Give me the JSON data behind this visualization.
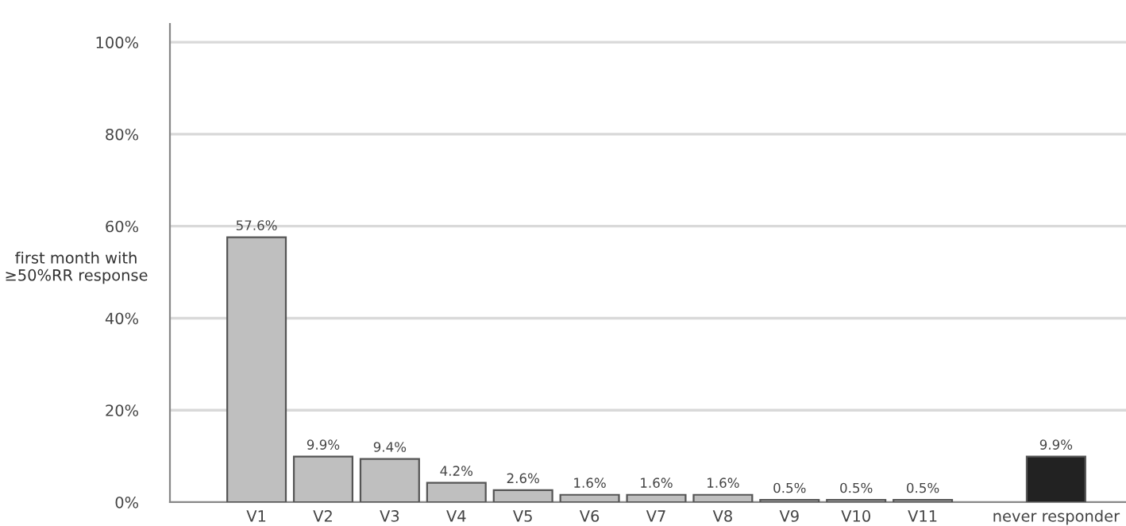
{
  "chart_data": {
    "type": "bar",
    "ylabel": "first month with\n≥50%RR response",
    "categories": [
      "V1",
      "V2",
      "V3",
      "V4",
      "V5",
      "V6",
      "V7",
      "V8",
      "V9",
      "V10",
      "V11",
      null,
      "never responder"
    ],
    "values": [
      57.6,
      9.9,
      9.4,
      4.2,
      2.6,
      1.6,
      1.6,
      1.6,
      0.5,
      0.5,
      0.5,
      null,
      9.9
    ],
    "colors": [
      "#bfbfbf",
      "#bfbfbf",
      "#bfbfbf",
      "#bfbfbf",
      "#bfbfbf",
      "#bfbfbf",
      "#bfbfbf",
      "#bfbfbf",
      "#bfbfbf",
      "#bfbfbf",
      "#bfbfbf",
      null,
      "#222222"
    ],
    "value_labels": [
      "57.6%",
      "9.9%",
      "9.4%",
      "4.2%",
      "2.6%",
      "1.6%",
      "1.6%",
      "1.6%",
      "0.5%",
      "0.5%",
      "0.5%",
      null,
      "9.9%"
    ],
    "ylim": [
      0,
      104
    ],
    "yticks": [
      {
        "value": 0,
        "label": "0%"
      },
      {
        "value": 20,
        "label": "20%"
      },
      {
        "value": 40,
        "label": "40%"
      },
      {
        "value": 60,
        "label": "60%"
      },
      {
        "value": 80,
        "label": "80%"
      },
      {
        "value": 100,
        "label": "100%"
      }
    ],
    "grid": "y"
  }
}
